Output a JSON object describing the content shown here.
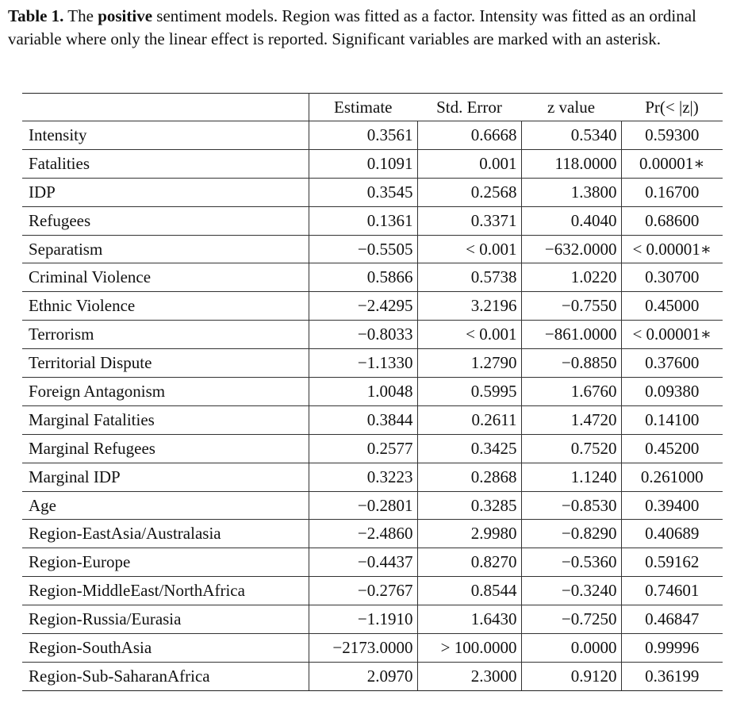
{
  "caption": {
    "label": "Table 1.",
    "text_before": " The ",
    "emphasis": "positive",
    "text_after": " sentiment models. Region was fitted as a factor. Intensity was fitted as an ordinal variable where only the linear effect is reported. Significant variables are marked with an asterisk."
  },
  "table": {
    "headers": [
      "",
      "Estimate",
      "Std. Error",
      "z value",
      "Pr(< |z|)"
    ],
    "rows": [
      [
        "Intensity",
        "0.3561",
        "0.6668",
        "0.5340",
        "0.59300"
      ],
      [
        "Fatalities",
        "0.1091",
        "0.001",
        "118.0000",
        "0.00001∗"
      ],
      [
        "IDP",
        "0.3545",
        "0.2568",
        "1.3800",
        "0.16700"
      ],
      [
        "Refugees",
        "0.1361",
        "0.3371",
        "0.4040",
        "0.68600"
      ],
      [
        "Separatism",
        "−0.5505",
        "< 0.001",
        "−632.0000",
        "< 0.00001∗"
      ],
      [
        "Criminal Violence",
        "0.5866",
        "0.5738",
        "1.0220",
        "0.30700"
      ],
      [
        "Ethnic Violence",
        "−2.4295",
        "3.2196",
        "−0.7550",
        "0.45000"
      ],
      [
        "Terrorism",
        "−0.8033",
        "< 0.001",
        "−861.0000",
        "< 0.00001∗"
      ],
      [
        "Territorial Dispute",
        "−1.1330",
        "1.2790",
        "−0.8850",
        "0.37600"
      ],
      [
        "Foreign Antagonism",
        "1.0048",
        "0.5995",
        "1.6760",
        "0.09380"
      ],
      [
        "Marginal Fatalities",
        "0.3844",
        "0.2611",
        "1.4720",
        "0.14100"
      ],
      [
        "Marginal Refugees",
        "0.2577",
        "0.3425",
        "0.7520",
        "0.45200"
      ],
      [
        "Marginal IDP",
        "0.3223",
        "0.2868",
        "1.1240",
        "0.261000"
      ],
      [
        "Age",
        "−0.2801",
        "0.3285",
        "−0.8530",
        "0.39400"
      ],
      [
        "Region-EastAsia/Australasia",
        "−2.4860",
        "2.9980",
        "−0.8290",
        "0.40689"
      ],
      [
        "Region-Europe",
        "−0.4437",
        "0.8270",
        "−0.5360",
        "0.59162"
      ],
      [
        "Region-MiddleEast/NorthAfrica",
        "−0.2767",
        "0.8544",
        "−0.3240",
        "0.74601"
      ],
      [
        "Region-Russia/Eurasia",
        "−1.1910",
        "1.6430",
        "−0.7250",
        "0.46847"
      ],
      [
        "Region-SouthAsia",
        "−2173.0000",
        "> 100.0000",
        "0.0000",
        "0.99996"
      ],
      [
        "Region-Sub-SaharanAfrica",
        "2.0970",
        "2.3000",
        "0.9120",
        "0.36199"
      ]
    ]
  }
}
